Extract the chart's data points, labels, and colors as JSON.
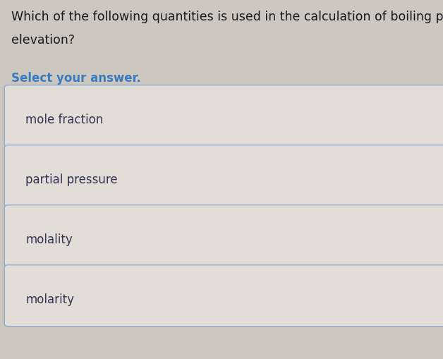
{
  "question_line1": "Which of the following quantities is used in the calculation of boiling point",
  "question_line2": "elevation?",
  "select_label": "Select your answer.",
  "choices": [
    "mole fraction",
    "partial pressure",
    "molality",
    "molarity"
  ],
  "background_color": "#cdc8bf",
  "box_fill_color": "#e2ddd6",
  "box_border_color": "#8aaccf",
  "question_color": "#1a1a1a",
  "select_color": "#3a7abf",
  "choice_color": "#333355",
  "question_fontsize": 12.5,
  "select_fontsize": 12,
  "choice_fontsize": 12,
  "fig_width": 6.28,
  "fig_height": 5.09,
  "dpi": 100
}
